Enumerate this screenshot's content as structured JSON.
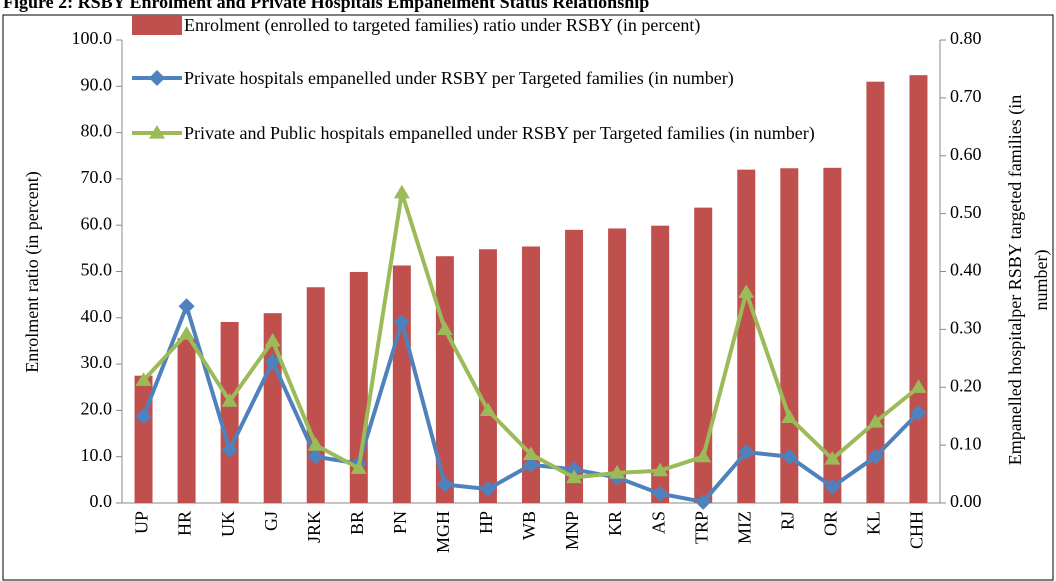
{
  "chart_data": {
    "type": "bar_line",
    "title": "Figure 2: RSBY Enrolment and Private Hospitals Empanelment Status Relationship",
    "ylabel": "Enrolment ratio (in percent)",
    "y2label": "Empanelled hospitalper RSBY targeted families (in number)",
    "categories": [
      "UP",
      "HR",
      "UK",
      "GJ",
      "JRK",
      "BR",
      "PN",
      "MGH",
      "HP",
      "WB",
      "MNP",
      "KR",
      "AS",
      "TRP",
      "MIZ",
      "RJ",
      "OR",
      "KL",
      "CHH"
    ],
    "series": [
      {
        "name": "Enrolment (enrolled to targeted families) ratio under RSBY (in percent)",
        "type": "bar",
        "color": "#c0504d",
        "values": [
          27.5,
          35.6,
          39.1,
          41,
          46.6,
          49.9,
          51.3,
          53.3,
          54.8,
          55.4,
          59.0,
          59.3,
          59.9,
          63.8,
          72.0,
          72.3,
          72.4,
          91.0,
          92.4
        ]
      },
      {
        "name": "Private hospitals empanelled under RSBY per Targeted families (in number)",
        "type": "line",
        "axis": "y2",
        "color": "#4f81bd",
        "marker": "diamond",
        "values": [
          0.15,
          0.34,
          0.092,
          0.244,
          0.08,
          0.068,
          0.312,
          0.032,
          0.024,
          0.066,
          0.058,
          0.044,
          0.016,
          0.002,
          0.088,
          0.08,
          0.028,
          0.08,
          0.156
        ]
      },
      {
        "name": "Private and Public hospitals empanelled under RSBY per Targeted families (in number)",
        "type": "line",
        "axis": "y2",
        "color": "#9bbb59",
        "marker": "triangle",
        "values": [
          0.212,
          0.292,
          0.176,
          0.28,
          0.1,
          0.06,
          0.536,
          0.3,
          0.16,
          0.084,
          0.044,
          0.052,
          0.056,
          0.08,
          0.364,
          0.148,
          0.076,
          0.14,
          0.2
        ]
      }
    ],
    "ylim": [
      0,
      100
    ],
    "yticks": [
      {
        "value": 0,
        "label": "0.0"
      },
      {
        "value": 10,
        "label": "10.0"
      },
      {
        "value": 20,
        "label": "20.0"
      },
      {
        "value": 30,
        "label": "30.0"
      },
      {
        "value": 40,
        "label": "40.0"
      },
      {
        "value": 50,
        "label": "50.0"
      },
      {
        "value": 60,
        "label": "60.0"
      },
      {
        "value": 70,
        "label": "70.0"
      },
      {
        "value": 80,
        "label": "80.0"
      },
      {
        "value": 90,
        "label": "90.0"
      },
      {
        "value": 100,
        "label": "100.0"
      }
    ],
    "y2lim": [
      0,
      0.8
    ],
    "y2ticks": [
      {
        "value": 0,
        "label": "0.00"
      },
      {
        "value": 0.1,
        "label": "0.10"
      },
      {
        "value": 0.2,
        "label": "0.20"
      },
      {
        "value": 0.3,
        "label": "0.30"
      },
      {
        "value": 0.4,
        "label": "0.40"
      },
      {
        "value": 0.5,
        "label": "0.50"
      },
      {
        "value": 0.6,
        "label": "0.60"
      },
      {
        "value": 0.7,
        "label": "0.70"
      },
      {
        "value": 0.8,
        "label": "0.80"
      }
    ]
  }
}
